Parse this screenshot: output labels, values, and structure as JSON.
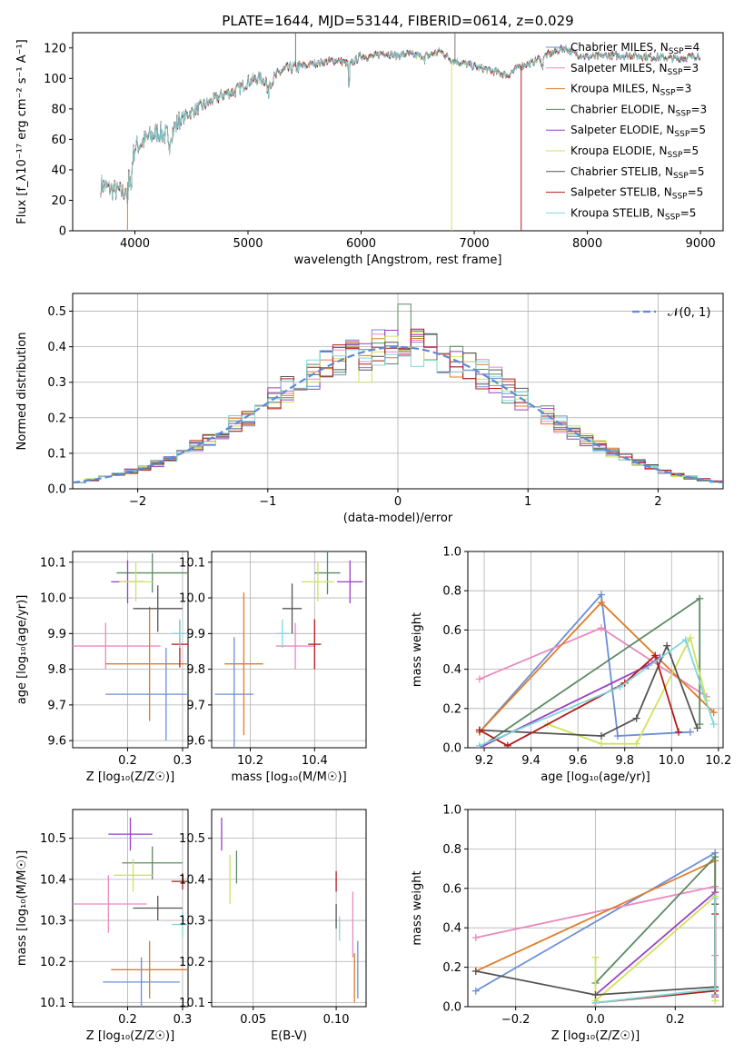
{
  "figure_title": "PLATE=1644, MJD=53144, FIBERID=0614, z=0.029",
  "palette": {
    "chabrier_miles": "#6b8fd6",
    "salpeter_miles": "#e989c0",
    "kroupa_miles": "#e07c28",
    "chabrier_elodie": "#5b8a63",
    "salpeter_elodie": "#9a3fc2",
    "kroupa_elodie": "#cfe35c",
    "chabrier_stelib": "#555555",
    "salpeter_stelib": "#b51a1a",
    "kroupa_stelib": "#7fd8dc",
    "grid": "#b0b0b0",
    "normal_curve": "#5b8bd6"
  },
  "chart_data": [
    {
      "id": "spectrum",
      "type": "line",
      "title": "PLATE=1644, MJD=53144, FIBERID=0614, z=0.029",
      "xlabel": "wavelength [Angstrom, rest frame]",
      "ylabel": "Flux [f_λ10⁻¹⁷ erg cm⁻² s⁻¹ A⁻¹]",
      "xlim": [
        3450,
        9200
      ],
      "ylim": [
        0,
        130
      ],
      "xticks": [
        "4000",
        "5000",
        "6000",
        "7000",
        "8000",
        "9000"
      ],
      "yticks": [
        "0",
        "20",
        "40",
        "60",
        "80",
        "100",
        "120"
      ],
      "grid": false,
      "legend_position": "top-right",
      "legend": [
        {
          "name": "Chabrier MILES, N",
          "sub": "SSP",
          "suffix": "=4",
          "color_key": "chabrier_miles"
        },
        {
          "name": "Salpeter MILES, N",
          "sub": "SSP",
          "suffix": "=3",
          "color_key": "salpeter_miles"
        },
        {
          "name": "Kroupa MILES, N",
          "sub": "SSP",
          "suffix": "=3",
          "color_key": "kroupa_miles"
        },
        {
          "name": "Chabrier ELODIE, N",
          "sub": "SSP",
          "suffix": "=3",
          "color_key": "chabrier_elodie"
        },
        {
          "name": "Salpeter ELODIE, N",
          "sub": "SSP",
          "suffix": "=5",
          "color_key": "salpeter_elodie"
        },
        {
          "name": "Kroupa ELODIE, N",
          "sub": "SSP",
          "suffix": "=5",
          "color_key": "kroupa_elodie"
        },
        {
          "name": "Chabrier STELIB, N",
          "sub": "SSP",
          "suffix": "=5",
          "color_key": "chabrier_stelib"
        },
        {
          "name": "Salpeter STELIB, N",
          "sub": "SSP",
          "suffix": "=5",
          "color_key": "salpeter_stelib"
        },
        {
          "name": "Kroupa STELIB, N",
          "sub": "SSP",
          "suffix": "=5",
          "color_key": "kroupa_stelib"
        }
      ],
      "continuum": {
        "x": [
          3700,
          3800,
          3900,
          3950,
          4000,
          4100,
          4200,
          4300,
          4400,
          4500,
          4600,
          4700,
          4800,
          4900,
          5000,
          5100,
          5200,
          5300,
          5400,
          5500,
          5600,
          5700,
          5800,
          5900,
          6000,
          6100,
          6200,
          6300,
          6400,
          6500,
          6600,
          6700,
          6800,
          6900,
          7000,
          7100,
          7200,
          7300,
          7400,
          7500,
          7600,
          7700,
          7800,
          7900,
          8000,
          8200,
          8400,
          8600,
          8800,
          9000
        ],
        "y": [
          30,
          27,
          25,
          35,
          55,
          60,
          65,
          62,
          73,
          78,
          82,
          86,
          90,
          92,
          98,
          100,
          98,
          105,
          107,
          108,
          110,
          111,
          112,
          109,
          115,
          114,
          117,
          115,
          116,
          115,
          115,
          118,
          112,
          110,
          108,
          106,
          104,
          102,
          108,
          110,
          114,
          117,
          120,
          116,
          114,
          115,
          115,
          114,
          113,
          115
        ]
      },
      "dips": [
        {
          "x": 3935,
          "y": 0,
          "color_key": "kroupa_miles"
        },
        {
          "x": 6800,
          "y": 0,
          "color_key": "kroupa_elodie"
        },
        {
          "x": 7415,
          "y": 0,
          "color_key": "salpeter_stelib"
        }
      ],
      "spikes": [
        {
          "x": 5420,
          "y": 130,
          "color_key": "chabrier_stelib"
        },
        {
          "x": 6830,
          "y": 130,
          "color_key": "chabrier_stelib"
        }
      ]
    },
    {
      "id": "residuals",
      "type": "histogram",
      "xlabel": "(data-model)/error",
      "ylabel": "Normed distribution",
      "xlim": [
        -2.5,
        2.5
      ],
      "ylim": [
        0,
        0.55
      ],
      "xticks": [
        "−2",
        "−1",
        "0",
        "1",
        "2"
      ],
      "yticks": [
        "0.0",
        "0.1",
        "0.2",
        "0.3",
        "0.4",
        "0.5"
      ],
      "grid": true,
      "bin_width": 0.1,
      "legend_position": "top-right",
      "normal_label": "𝒩(0, 1)"
    },
    {
      "id": "age_vs_z",
      "type": "errorbar",
      "xlabel": "Z [log₁₀(Z/Z☉)]",
      "ylabel": "age  [log₁₀(age/yr)]",
      "xlim": [
        0.1,
        0.31
      ],
      "ylim": [
        9.58,
        10.13
      ],
      "xticks": [
        {
          "v": 0.2,
          "t": "0.2"
        },
        {
          "v": 0.3,
          "t": "0.3"
        }
      ],
      "yticks": [
        {
          "v": 9.6,
          "t": "9.6"
        },
        {
          "v": 9.7,
          "t": "9.7"
        },
        {
          "v": 9.8,
          "t": "9.8"
        },
        {
          "v": 9.9,
          "t": "9.9"
        },
        {
          "v": 10.0,
          "t": "10.0"
        },
        {
          "v": 10.1,
          "t": "10.1"
        }
      ],
      "grid": true,
      "points": [
        {
          "key": "chabrier_miles",
          "x": 0.27,
          "xerr": 0.11,
          "y": 9.73,
          "yerr": 0.13
        },
        {
          "key": "salpeter_miles",
          "x": 0.16,
          "xerr": 0.1,
          "y": 9.865,
          "yerr": 0.065
        },
        {
          "key": "kroupa_miles",
          "x": 0.24,
          "xerr": 0.08,
          "y": 9.815,
          "yerr": 0.16
        },
        {
          "key": "chabrier_elodie",
          "x": 0.245,
          "xerr": 0.065,
          "y": 10.07,
          "yerr": 0.055
        },
        {
          "key": "salpeter_elodie",
          "x": 0.2,
          "xerr": 0.03,
          "y": 10.045,
          "yerr": 0.06
        },
        {
          "key": "kroupa_elodie",
          "x": 0.215,
          "xerr": 0.03,
          "y": 10.045,
          "yerr": 0.055
        },
        {
          "key": "chabrier_stelib",
          "x": 0.255,
          "xerr": 0.045,
          "y": 9.97,
          "yerr": 0.065
        },
        {
          "key": "salpeter_stelib",
          "x": 0.295,
          "xerr": 0.015,
          "y": 9.87,
          "yerr": 0.065
        },
        {
          "key": "kroupa_stelib",
          "x": 0.295,
          "xerr": 0.015,
          "y": 9.9,
          "yerr": 0.04
        }
      ]
    },
    {
      "id": "age_vs_mass",
      "type": "errorbar",
      "xlabel": "mass [log₁₀(M/M☉)]",
      "ylabel": "",
      "xlim": [
        10.08,
        10.56
      ],
      "ylim": [
        9.58,
        10.13
      ],
      "xticks": [
        {
          "v": 10.2,
          "t": "10.2"
        },
        {
          "v": 10.4,
          "t": "10.4"
        }
      ],
      "yticks": [
        {
          "v": 9.6,
          "t": "9.6"
        },
        {
          "v": 9.7,
          "t": "9.7"
        },
        {
          "v": 9.8,
          "t": "9.8"
        },
        {
          "v": 9.9,
          "t": "9.9"
        },
        {
          "v": 10.0,
          "t": "10.0"
        },
        {
          "v": 10.1,
          "t": "10.1"
        }
      ],
      "grid": true,
      "points": [
        {
          "key": "chabrier_miles",
          "x": 10.15,
          "xerr": 0.06,
          "y": 9.73,
          "yerr": 0.16
        },
        {
          "key": "salpeter_miles",
          "x": 10.34,
          "xerr": 0.06,
          "y": 9.865,
          "yerr": 0.065
        },
        {
          "key": "kroupa_miles",
          "x": 10.18,
          "xerr": 0.06,
          "y": 9.815,
          "yerr": 0.2
        },
        {
          "key": "chabrier_elodie",
          "x": 10.44,
          "xerr": 0.04,
          "y": 10.07,
          "yerr": 0.06
        },
        {
          "key": "salpeter_elodie",
          "x": 10.51,
          "xerr": 0.04,
          "y": 10.045,
          "yerr": 0.06
        },
        {
          "key": "kroupa_elodie",
          "x": 10.41,
          "xerr": 0.05,
          "y": 10.045,
          "yerr": 0.055
        },
        {
          "key": "chabrier_stelib",
          "x": 10.33,
          "xerr": 0.03,
          "y": 9.97,
          "yerr": 0.07
        },
        {
          "key": "salpeter_stelib",
          "x": 10.4,
          "xerr": 0.02,
          "y": 9.87,
          "yerr": 0.07
        },
        {
          "key": "kroupa_stelib",
          "x": 10.3,
          "xerr": 0.02,
          "y": 9.9,
          "yerr": 0.04
        }
      ]
    },
    {
      "id": "weight_vs_age",
      "type": "line",
      "xlabel": "age  [log₁₀(age/yr)]",
      "ylabel": "mass weight",
      "xlim": [
        9.13,
        10.22
      ],
      "ylim": [
        0,
        1
      ],
      "xticks": [
        {
          "v": 9.2,
          "t": "9.2"
        },
        {
          "v": 9.4,
          "t": "9.4"
        },
        {
          "v": 9.6,
          "t": "9.6"
        },
        {
          "v": 9.8,
          "t": "9.8"
        },
        {
          "v": 10.0,
          "t": "10.0"
        },
        {
          "v": 10.2,
          "t": "10.2"
        }
      ],
      "yticks": [
        {
          "v": 0,
          "t": "0.0"
        },
        {
          "v": 0.2,
          "t": "0.2"
        },
        {
          "v": 0.4,
          "t": "0.4"
        },
        {
          "v": 0.6,
          "t": "0.6"
        },
        {
          "v": 0.8,
          "t": "0.8"
        },
        {
          "v": 1,
          "t": "1.0"
        }
      ],
      "grid": true,
      "series": [
        {
          "key": "chabrier_miles",
          "x": [
            9.18,
            9.7,
            9.77,
            10.08
          ],
          "y": [
            0.08,
            0.78,
            0.06,
            0.08
          ]
        },
        {
          "key": "salpeter_miles",
          "x": [
            9.18,
            9.7,
            10.15
          ],
          "y": [
            0.35,
            0.61,
            0.26
          ]
        },
        {
          "key": "kroupa_miles",
          "x": [
            9.18,
            9.7,
            10.18
          ],
          "y": [
            0.08,
            0.74,
            0.18
          ]
        },
        {
          "key": "chabrier_elodie",
          "x": [
            9.18,
            10.12,
            10.12
          ],
          "y": [
            0.0,
            0.76,
            0.12
          ]
        },
        {
          "key": "salpeter_elodie",
          "x": [
            9.18,
            9.9,
            9.95
          ],
          "y": [
            0.0,
            0.42,
            0.46
          ]
        },
        {
          "key": "kroupa_elodie",
          "x": [
            9.47,
            9.7,
            9.85,
            10.08,
            10.15
          ],
          "y": [
            0.12,
            0.02,
            0.02,
            0.56,
            0.24
          ]
        },
        {
          "key": "chabrier_stelib",
          "x": [
            9.18,
            9.7,
            9.85,
            9.98,
            10.11
          ],
          "y": [
            0.09,
            0.06,
            0.15,
            0.52,
            0.1
          ]
        },
        {
          "key": "salpeter_stelib",
          "x": [
            9.18,
            9.3,
            9.8,
            9.93,
            10.03
          ],
          "y": [
            0.09,
            0.01,
            0.33,
            0.47,
            0.08
          ]
        },
        {
          "key": "kroupa_stelib",
          "x": [
            9.18,
            9.78,
            10.06,
            10.18
          ],
          "y": [
            0.01,
            0.31,
            0.55,
            0.12
          ]
        }
      ]
    },
    {
      "id": "mass_vs_z",
      "type": "errorbar",
      "xlabel": "Z [log₁₀(Z/Z☉)]",
      "ylabel": "mass [log₁₀(M/M☉)]",
      "xlim": [
        0.1,
        0.31
      ],
      "ylim": [
        10.09,
        10.57
      ],
      "xticks": [
        {
          "v": 0.2,
          "t": "0.2"
        },
        {
          "v": 0.3,
          "t": "0.3"
        }
      ],
      "yticks": [
        {
          "v": 10.1,
          "t": "10.1"
        },
        {
          "v": 10.2,
          "t": "10.2"
        },
        {
          "v": 10.3,
          "t": "10.3"
        },
        {
          "v": 10.4,
          "t": "10.4"
        },
        {
          "v": 10.5,
          "t": "10.5"
        }
      ],
      "grid": true,
      "points": [
        {
          "key": "chabrier_miles",
          "x": 0.225,
          "xerr": 0.07,
          "y": 10.15,
          "yerr": 0.06
        },
        {
          "key": "salpeter_miles",
          "x": 0.165,
          "xerr": 0.07,
          "y": 10.34,
          "yerr": 0.07
        },
        {
          "key": "kroupa_miles",
          "x": 0.24,
          "xerr": 0.07,
          "y": 10.18,
          "yerr": 0.07
        },
        {
          "key": "chabrier_elodie",
          "x": 0.245,
          "xerr": 0.055,
          "y": 10.44,
          "yerr": 0.04
        },
        {
          "key": "salpeter_elodie",
          "x": 0.205,
          "xerr": 0.04,
          "y": 10.51,
          "yerr": 0.04
        },
        {
          "key": "kroupa_elodie",
          "x": 0.21,
          "xerr": 0.035,
          "y": 10.41,
          "yerr": 0.04
        },
        {
          "key": "chabrier_stelib",
          "x": 0.255,
          "xerr": 0.045,
          "y": 10.33,
          "yerr": 0.03
        },
        {
          "key": "salpeter_stelib",
          "x": 0.3,
          "xerr": 0.02,
          "y": 10.395,
          "yerr": 0.02
        },
        {
          "key": "kroupa_stelib",
          "x": 0.3,
          "xerr": 0.02,
          "y": 10.29,
          "yerr": 0.03
        }
      ]
    },
    {
      "id": "mass_vs_ebv",
      "type": "errorbar",
      "xlabel": "E(B-V)",
      "ylabel": "",
      "xlim": [
        0.025,
        0.118
      ],
      "ylim": [
        10.09,
        10.57
      ],
      "xticks": [
        {
          "v": 0.05,
          "t": "0.05"
        },
        {
          "v": 0.1,
          "t": "0.10"
        }
      ],
      "yticks": [
        {
          "v": 10.1,
          "t": "10.1"
        },
        {
          "v": 10.2,
          "t": "10.2"
        },
        {
          "v": 10.3,
          "t": "10.3"
        },
        {
          "v": 10.4,
          "t": "10.4"
        },
        {
          "v": 10.5,
          "t": "10.5"
        }
      ],
      "grid": true,
      "points": [
        {
          "key": "chabrier_miles",
          "x": 0.113,
          "xerr": 0,
          "y": 10.18,
          "yerr": 0.07
        },
        {
          "key": "salpeter_miles",
          "x": 0.11,
          "xerr": 0,
          "y": 10.29,
          "yerr": 0.08
        },
        {
          "key": "kroupa_miles",
          "x": 0.111,
          "xerr": 0,
          "y": 10.16,
          "yerr": 0.06
        },
        {
          "key": "chabrier_elodie",
          "x": 0.04,
          "xerr": 0,
          "y": 10.43,
          "yerr": 0.04
        },
        {
          "key": "salpeter_elodie",
          "x": 0.031,
          "xerr": 0,
          "y": 10.51,
          "yerr": 0.04
        },
        {
          "key": "kroupa_elodie",
          "x": 0.036,
          "xerr": 0,
          "y": 10.4,
          "yerr": 0.06
        },
        {
          "key": "chabrier_stelib",
          "x": 0.1,
          "xerr": 0,
          "y": 10.31,
          "yerr": 0.03
        },
        {
          "key": "salpeter_stelib",
          "x": 0.1,
          "xerr": 0,
          "y": 10.395,
          "yerr": 0.025
        },
        {
          "key": "kroupa_stelib",
          "x": 0.102,
          "xerr": 0,
          "y": 10.28,
          "yerr": 0.03
        }
      ]
    },
    {
      "id": "weight_vs_z",
      "type": "line",
      "xlabel": "Z [log₁₀(Z/Z☉)]",
      "ylabel": "mass weight",
      "xlim": [
        -0.32,
        0.32
      ],
      "ylim": [
        0,
        1
      ],
      "xticks": [
        {
          "v": -0.2,
          "t": "−0.2"
        },
        {
          "v": 0.0,
          "t": "0.0"
        },
        {
          "v": 0.2,
          "t": "0.2"
        }
      ],
      "yticks": [
        {
          "v": 0,
          "t": "0.0"
        },
        {
          "v": 0.2,
          "t": "0.2"
        },
        {
          "v": 0.4,
          "t": "0.4"
        },
        {
          "v": 0.6,
          "t": "0.6"
        },
        {
          "v": 0.8,
          "t": "0.8"
        },
        {
          "v": 1,
          "t": "1.0"
        }
      ],
      "grid": true,
      "series": [
        {
          "key": "chabrier_miles",
          "x": [
            -0.3,
            0.3,
            0.3
          ],
          "y": [
            0.08,
            0.78,
            0.06
          ]
        },
        {
          "key": "salpeter_miles",
          "x": [
            -0.3,
            0.3,
            0.3
          ],
          "y": [
            0.35,
            0.61,
            0.26
          ]
        },
        {
          "key": "kroupa_miles",
          "x": [
            -0.3,
            0.3,
            0.3
          ],
          "y": [
            0.18,
            0.74,
            0.05
          ]
        },
        {
          "key": "chabrier_elodie",
          "x": [
            0.0,
            0.3,
            0.3
          ],
          "y": [
            0.12,
            0.76,
            0.08
          ]
        },
        {
          "key": "salpeter_elodie",
          "x": [
            0.0,
            0.3,
            0.3
          ],
          "y": [
            0.06,
            0.58,
            0.05
          ]
        },
        {
          "key": "kroupa_elodie",
          "x": [
            0.0,
            0.0,
            0.3,
            0.3
          ],
          "y": [
            0.25,
            0.03,
            0.56,
            0.03
          ]
        },
        {
          "key": "chabrier_stelib",
          "x": [
            -0.3,
            0.0,
            0.3,
            0.3
          ],
          "y": [
            0.18,
            0.06,
            0.1,
            0.52
          ]
        },
        {
          "key": "salpeter_stelib",
          "x": [
            0.0,
            0.3,
            0.3
          ],
          "y": [
            0.02,
            0.08,
            0.47
          ]
        },
        {
          "key": "kroupa_stelib",
          "x": [
            0.0,
            0.3,
            0.3
          ],
          "y": [
            0.02,
            0.09,
            0.55
          ]
        }
      ]
    }
  ]
}
